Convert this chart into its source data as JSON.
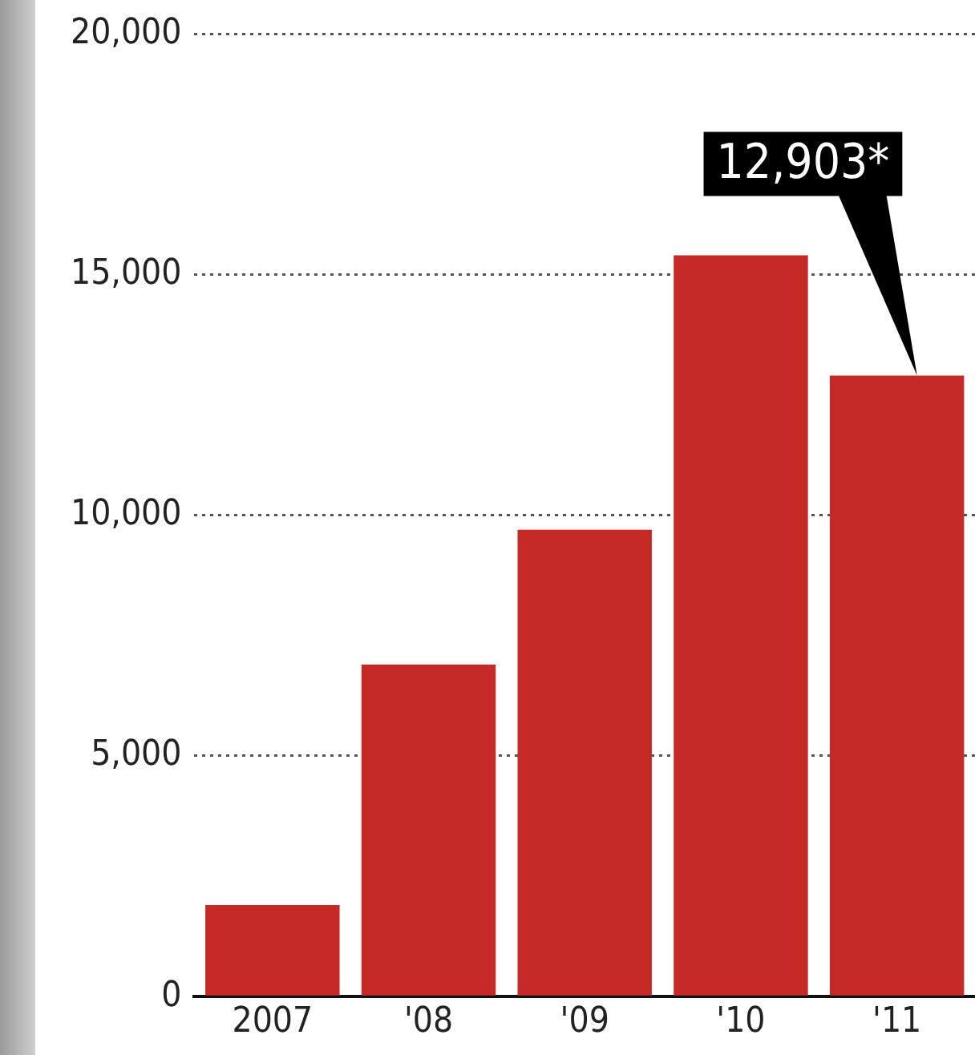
{
  "chart_data": {
    "type": "bar",
    "categories": [
      "2007",
      "'08",
      "'09",
      "'10",
      "'11"
    ],
    "values": [
      1900,
      6900,
      9700,
      15400,
      12903
    ],
    "value_labels": [
      null,
      null,
      null,
      null,
      "12,903*"
    ],
    "color": "#c62a27",
    "ylim": [
      0,
      20000
    ],
    "yticks": [
      {
        "value": 0,
        "label": "0"
      },
      {
        "value": 5000,
        "label": "5,000"
      },
      {
        "value": 10000,
        "label": "10,000"
      },
      {
        "value": 15000,
        "label": "15,000"
      },
      {
        "value": 20000,
        "label": "20,000"
      }
    ],
    "grid": "y",
    "legend": false
  }
}
